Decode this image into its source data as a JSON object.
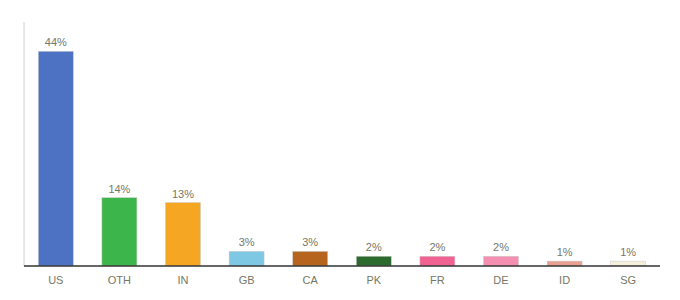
{
  "chart_data": {
    "type": "bar",
    "categories": [
      "US",
      "OTH",
      "IN",
      "GB",
      "CA",
      "PK",
      "FR",
      "DE",
      "ID",
      "SG"
    ],
    "values": [
      44,
      14,
      13,
      3,
      3,
      2,
      2,
      2,
      1,
      1
    ],
    "value_labels": [
      "44%",
      "14%",
      "13%",
      "3%",
      "3%",
      "2%",
      "2%",
      "2%",
      "1%",
      "1%"
    ],
    "colors": [
      "#4d72c4",
      "#3cb54a",
      "#f5a623",
      "#7ec8e3",
      "#b5651d",
      "#2d6a2d",
      "#f06292",
      "#f48fb1",
      "#e8a090",
      "#f5f0dc"
    ],
    "ylim": [
      0,
      50
    ],
    "data_labels": true,
    "tick_labels": "x",
    "grid": false
  }
}
